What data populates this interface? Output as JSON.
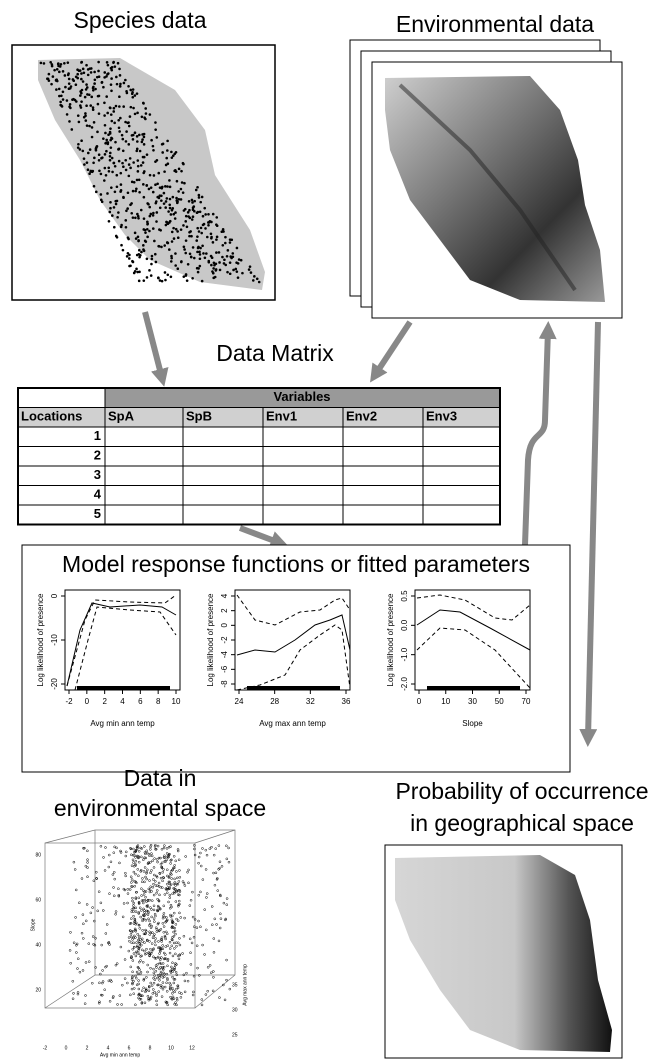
{
  "panels": {
    "species": {
      "title": "Species data"
    },
    "environmental": {
      "title": "Environmental data"
    }
  },
  "matrix": {
    "title": "Data Matrix",
    "group_header": "Variables",
    "columns": [
      "Locations",
      "SpA",
      "SpB",
      "Env1",
      "Env2",
      "Env3"
    ],
    "rows": [
      "1",
      "2",
      "3",
      "4",
      "5"
    ]
  },
  "model": {
    "title": "Model response functions or fitted parameters",
    "plots": [
      {
        "y_label": "Log likelihood of presence",
        "x_label": "Avg min ann temp",
        "x_ticks": [
          "-2",
          "0",
          "2",
          "4",
          "6",
          "8",
          "10"
        ],
        "y_ticks": [
          "0",
          "-10",
          "-20"
        ]
      },
      {
        "y_label": "Log likelihood of presence",
        "x_label": "Avg max ann temp",
        "x_ticks": [
          "24",
          "28",
          "32",
          "36"
        ],
        "y_ticks": [
          "4",
          "2",
          "0",
          "-2",
          "-4",
          "-6",
          "-8"
        ]
      },
      {
        "y_label": "Log likelihood of presence",
        "x_label": "Slope",
        "x_ticks": [
          "0",
          "10",
          "30",
          "50",
          "70"
        ],
        "y_ticks": [
          "0.5",
          "0.0",
          "-1.0",
          "-2.0"
        ]
      }
    ]
  },
  "env_space": {
    "title_lines": [
      "Data in",
      "environmental space"
    ],
    "z_label": "Slope",
    "x_label": "Avg min ann temp",
    "y_label": "Avg max ann temp",
    "z_ticks": [
      "20",
      "40",
      "60",
      "80"
    ],
    "x_ticks": [
      "-2",
      "0",
      "2",
      "4",
      "6",
      "8",
      "10",
      "12"
    ],
    "y_ticks": [
      "25",
      "30",
      "35"
    ]
  },
  "geo_space": {
    "title_lines": [
      "Probability of occurrence",
      "in geographical space"
    ]
  }
}
